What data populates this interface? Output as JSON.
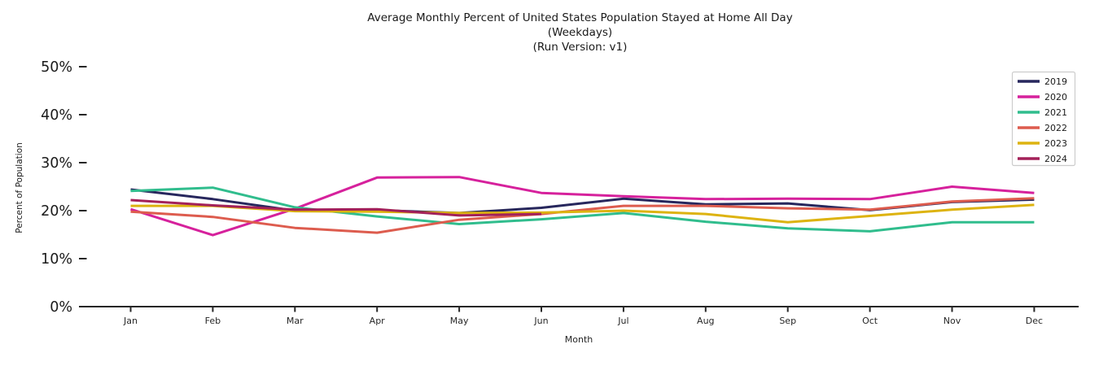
{
  "chart_data": {
    "type": "line",
    "title": "Average Monthly Percent of United States Population Stayed at Home All Day",
    "subtitle": "(Weekdays)",
    "run_version_line": "(Run Version: v1)",
    "xlabel": "Month",
    "ylabel": "Percent of Population",
    "categories": [
      "Jan",
      "Feb",
      "Mar",
      "Apr",
      "May",
      "Jun",
      "Jul",
      "Aug",
      "Sep",
      "Oct",
      "Nov",
      "Dec"
    ],
    "y_ticks": [
      0,
      10,
      20,
      30,
      40,
      50
    ],
    "y_tick_suffix": "%",
    "ylim": [
      0,
      52
    ],
    "grid": false,
    "legend_position": "upper-right",
    "series": [
      {
        "name": "2019",
        "color": "#27275d",
        "values": [
          24.4,
          22.4,
          20.0,
          20.1,
          19.5,
          20.6,
          22.5,
          21.3,
          21.5,
          20.1,
          21.8,
          22.3
        ]
      },
      {
        "name": "2020",
        "color": "#d6219c",
        "values": [
          20.3,
          14.9,
          20.4,
          26.9,
          27.0,
          23.7,
          23.0,
          22.4,
          22.5,
          22.4,
          25.0,
          23.7
        ]
      },
      {
        "name": "2021",
        "color": "#30bd8d",
        "values": [
          24.1,
          24.8,
          20.7,
          18.8,
          17.2,
          18.2,
          19.5,
          17.7,
          16.3,
          15.7,
          17.6,
          17.6
        ]
      },
      {
        "name": "2022",
        "color": "#dd5c4e",
        "values": [
          19.8,
          18.7,
          16.4,
          15.4,
          18.1,
          19.3,
          21.0,
          21.0,
          20.5,
          20.2,
          21.9,
          22.6
        ]
      },
      {
        "name": "2023",
        "color": "#ddb310",
        "values": [
          21.0,
          21.0,
          19.9,
          19.8,
          19.5,
          19.6,
          20.0,
          19.3,
          17.6,
          18.9,
          20.2,
          21.2
        ]
      },
      {
        "name": "2024",
        "color": "#a32159",
        "values": [
          22.2,
          21.1,
          20.2,
          20.3,
          19.0,
          19.3,
          null,
          null,
          null,
          null,
          null,
          null
        ]
      }
    ],
    "axis_color": "#262626",
    "legend_border_color": "#cccccc"
  }
}
